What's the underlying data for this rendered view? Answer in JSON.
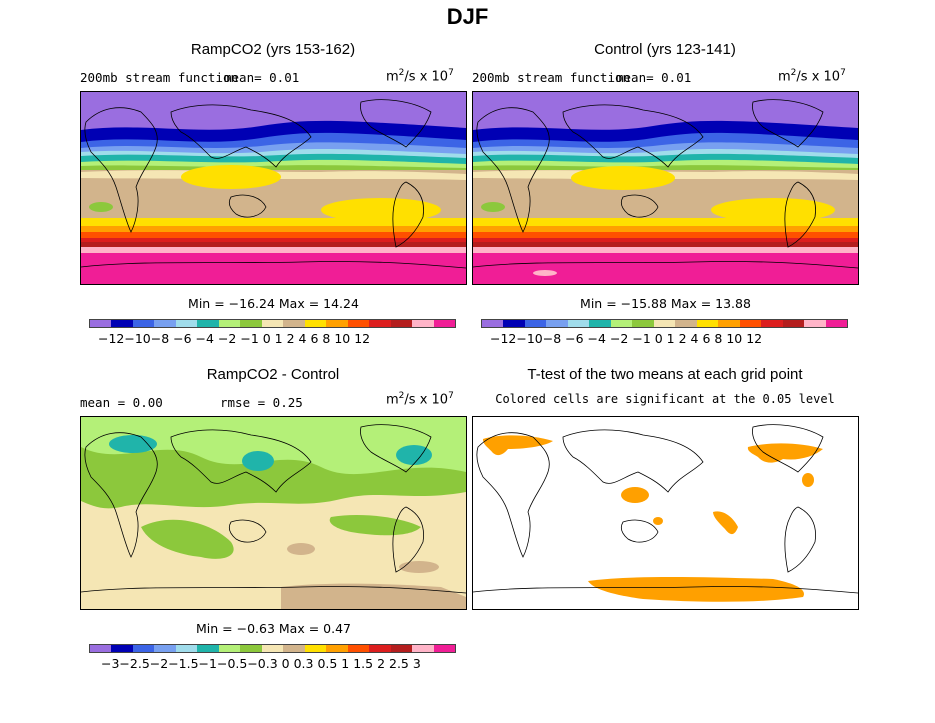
{
  "figure": {
    "title": "DJF"
  },
  "panels": {
    "ramp": {
      "title": "RampCO2 (yrs 153-162)",
      "subtitle_left": "200mb stream function",
      "mean_text": "mean=    0.01",
      "units_base": "m",
      "units_exp1": "2",
      "units_mid": "/s x 10",
      "units_exp2": "7",
      "minmax": "Min = −16.24 Max =  14.24"
    },
    "control": {
      "title": "Control (yrs 123-141)",
      "subtitle_left": "200mb stream function",
      "mean_text": "mean=    0.01",
      "units_base": "m",
      "units_exp1": "2",
      "units_mid": "/s x 10",
      "units_exp2": "7",
      "minmax": "Min = −15.88 Max =  13.88"
    },
    "diff": {
      "title": "RampCO2 - Control",
      "mean_text": "mean =    0.00",
      "rmse_text": "rmse =    0.25",
      "units_base": "m",
      "units_exp1": "2",
      "units_mid": "/s x 10",
      "units_exp2": "7",
      "minmax": "Min =  −0.63 Max =   0.47"
    },
    "ttest": {
      "title": "T-test of the two means at each grid point",
      "subtitle": "Colored cells are significant at the 0.05 level"
    }
  },
  "colorbars": {
    "main": {
      "colors": [
        "#9a6ee0",
        "#0000b4",
        "#3c64e6",
        "#78a0f0",
        "#a0dceb",
        "#20b4aa",
        "#b4f078",
        "#8cc83c",
        "#f5e6b4",
        "#d2b48c",
        "#ffe000",
        "#ffa000",
        "#ff5000",
        "#dc1e1e",
        "#b41e1e",
        "#ffb4c8",
        "#f01e96"
      ],
      "labels": "−12−10−8 −6 −4 −2 −1  0   1   2   4   6   8  10  12"
    },
    "diff": {
      "colors": [
        "#9a6ee0",
        "#0000b4",
        "#3c64e6",
        "#78a0f0",
        "#a0dceb",
        "#20b4aa",
        "#b4f078",
        "#8cc83c",
        "#f5e6b4",
        "#d2b48c",
        "#ffe000",
        "#ffa000",
        "#ff5000",
        "#dc1e1e",
        "#b41e1e",
        "#ffb4c8",
        "#f01e96"
      ],
      "labels": "−3−2.5−2−1.5−1−0.5−0.3 0  0.3 0.5  1  1.5  2  2.5  3"
    }
  },
  "colors": {
    "significance": "#ffa000",
    "coastline": "#000000"
  }
}
